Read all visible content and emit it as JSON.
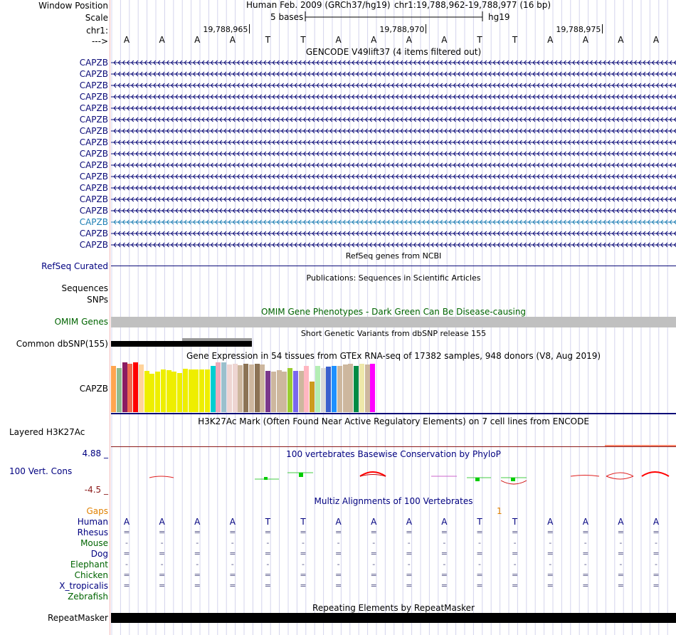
{
  "header": {
    "window_position_label": "Window Position",
    "scale_label": "Scale",
    "chrom_label": "chr1:",
    "strand_label": "--->",
    "assembly": "Human Feb. 2009 (GRCh37/hg19)",
    "position": "chr1:19,788,962-19,788,977 (16 bp)",
    "scale_text": "5 bases",
    "scale_db": "hg19",
    "ticks": [
      "19,788,965",
      "19,788,970",
      "19,788,975"
    ]
  },
  "sequence": [
    "A",
    "A",
    "A",
    "A",
    "T",
    "T",
    "A",
    "A",
    "A",
    "A",
    "T",
    "T",
    "A",
    "A",
    "A",
    "A"
  ],
  "gencode": {
    "title": "GENCODE V49lift37 (4 items filtered out)",
    "items": [
      "CAPZB",
      "CAPZB",
      "CAPZB",
      "CAPZB",
      "CAPZB",
      "CAPZB",
      "CAPZB",
      "CAPZB",
      "CAPZB",
      "CAPZB",
      "CAPZB",
      "CAPZB",
      "CAPZB",
      "CAPZB",
      "CAPZB",
      "CAPZB",
      "CAPZB"
    ],
    "colors": [
      "#0c0c78",
      "#0c0c78",
      "#0c0c78",
      "#0c0c78",
      "#0c0c78",
      "#0c0c78",
      "#0c0c78",
      "#0c0c78",
      "#0c0c78",
      "#0c0c78",
      "#0c0c78",
      "#0c0c78",
      "#0c0c78",
      "#0c0c78",
      "#1e7fb4",
      "#0c0c78",
      "#0c0c78"
    ]
  },
  "refseq": {
    "title": "RefSeq genes from NCBI",
    "label": "RefSeq Curated"
  },
  "publications": {
    "title": "Publications: Sequences in Scientific Articles",
    "label1": "Sequences",
    "label2": "SNPs"
  },
  "omim": {
    "title": "OMIM Gene Phenotypes - Dark Green Can Be Disease-causing",
    "label": "OMIM Genes"
  },
  "dbsnp": {
    "title": "Short Genetic Variants from dbSNP release 155",
    "label": "Common dbSNP(155)"
  },
  "gtex": {
    "title": "Gene Expression in 54 tissues from GTEx RNA-seq of 17382 samples, 948 donors (V8, Aug 2019)",
    "label": "CAPZB",
    "bars": [
      {
        "color": "#FFA54F",
        "value": 65
      },
      {
        "color": "#8FBC8F",
        "value": 62
      },
      {
        "color": "#8B1C62",
        "value": 70
      },
      {
        "color": "#EE6A50",
        "value": 68
      },
      {
        "color": "#FF0000",
        "value": 70
      },
      {
        "color": "#FFD39B",
        "value": 67
      },
      {
        "color": "#EEEE00",
        "value": 58
      },
      {
        "color": "#EEEE00",
        "value": 54
      },
      {
        "color": "#EEEE00",
        "value": 57
      },
      {
        "color": "#EEEE00",
        "value": 60
      },
      {
        "color": "#EEEE00",
        "value": 59
      },
      {
        "color": "#EEEE00",
        "value": 57
      },
      {
        "color": "#EEEE00",
        "value": 55
      },
      {
        "color": "#EEEE00",
        "value": 61
      },
      {
        "color": "#EEEE00",
        "value": 60
      },
      {
        "color": "#EEEE00",
        "value": 60
      },
      {
        "color": "#EEEE00",
        "value": 60
      },
      {
        "color": "#EEEE00",
        "value": 60
      },
      {
        "color": "#00CED1",
        "value": 65
      },
      {
        "color": "#EEA9B8",
        "value": 70
      },
      {
        "color": "#9AC0CD",
        "value": 70
      },
      {
        "color": "#EED5D2",
        "value": 67
      },
      {
        "color": "#EED5D2",
        "value": 68
      },
      {
        "color": "#CDB79E",
        "value": 66
      },
      {
        "color": "#8B7355",
        "value": 68
      },
      {
        "color": "#CDB79E",
        "value": 67
      },
      {
        "color": "#8B7355",
        "value": 68
      },
      {
        "color": "#CDB79E",
        "value": 67
      },
      {
        "color": "#7A378B",
        "value": 58
      },
      {
        "color": "#CDB79E",
        "value": 57
      },
      {
        "color": "#CDB79E",
        "value": 59
      },
      {
        "color": "#CDB79E",
        "value": 57
      },
      {
        "color": "#9ACD32",
        "value": 62
      },
      {
        "color": "#7A67EE",
        "value": 58
      },
      {
        "color": "#CDB79E",
        "value": 58
      },
      {
        "color": "#FFB6C1",
        "value": 65
      },
      {
        "color": "#CD9B1D",
        "value": 43
      },
      {
        "color": "#B4EEB4",
        "value": 65
      },
      {
        "color": "#D9D9D9",
        "value": 62
      },
      {
        "color": "#3A5FCD",
        "value": 64
      },
      {
        "color": "#1E90FF",
        "value": 65
      },
      {
        "color": "#CDB79E",
        "value": 65
      },
      {
        "color": "#CDB79E",
        "value": 67
      },
      {
        "color": "#CDB79E",
        "value": 68
      },
      {
        "color": "#008B45",
        "value": 65
      },
      {
        "color": "#EEE8AA",
        "value": 68
      },
      {
        "color": "#CDB79E",
        "value": 67
      },
      {
        "color": "#FF00FF",
        "value": 68
      }
    ]
  },
  "h3k27ac": {
    "title": "H3K27Ac Mark (Often Found Near Active Regulatory Elements) on 7 cell lines from ENCODE",
    "label": "Layered H3K27Ac"
  },
  "cons": {
    "title": "100 vertebrates Basewise Conservation by PhyloP",
    "label": "100 Vert. Cons",
    "max_label": "4.88 _",
    "min_label": "-4.5 _"
  },
  "multiz": {
    "title": "Multiz Alignments of 100 Vertebrates",
    "gaps_label": "Gaps",
    "gap_count": "1",
    "species": [
      {
        "name": "Human",
        "color": "#000080",
        "row": [
          "A",
          "A",
          "A",
          "A",
          "T",
          "T",
          "A",
          "A",
          "A",
          "A",
          "T",
          "T",
          "A",
          "A",
          "A",
          "A"
        ]
      },
      {
        "name": "Rhesus",
        "color": "#000080",
        "row": [
          "=",
          "=",
          "=",
          "=",
          "=",
          "=",
          "=",
          "=",
          "=",
          "=",
          "=",
          "=",
          "=",
          "=",
          "=",
          "="
        ]
      },
      {
        "name": "Mouse",
        "color": "#006400",
        "row": [
          "-",
          "-",
          "-",
          "-",
          "-",
          "-",
          "-",
          "-",
          "-",
          "-",
          "-",
          "-",
          "-",
          "-",
          "-",
          "-"
        ]
      },
      {
        "name": "Dog",
        "color": "#000080",
        "row": [
          "=",
          "=",
          "=",
          "=",
          "=",
          "=",
          "=",
          "=",
          "=",
          "=",
          "=",
          "=",
          "=",
          "=",
          "=",
          "="
        ]
      },
      {
        "name": "Elephant",
        "color": "#006400",
        "row": [
          "-",
          "-",
          "-",
          "-",
          "-",
          "-",
          "-",
          "-",
          "-",
          "-",
          "-",
          "-",
          "-",
          "-",
          "-",
          "-"
        ]
      },
      {
        "name": "Chicken",
        "color": "#006400",
        "row": [
          "=",
          "=",
          "=",
          "=",
          "=",
          "=",
          "=",
          "=",
          "=",
          "=",
          "=",
          "=",
          "=",
          "=",
          "=",
          "="
        ]
      },
      {
        "name": "X_tropicalis",
        "color": "#000080",
        "row": [
          "=",
          "=",
          "=",
          "=",
          "=",
          "=",
          "=",
          "=",
          "=",
          "=",
          "=",
          "=",
          "=",
          "=",
          "=",
          "="
        ]
      },
      {
        "name": "Zebrafish",
        "color": "#006400",
        "row": [
          "",
          "",
          "",
          "",
          "",
          "",
          "",
          "",
          "",
          "",
          "",
          "",
          "",
          "",
          "",
          ""
        ]
      }
    ]
  },
  "repeatmasker": {
    "title": "Repeating Elements by RepeatMasker",
    "label": "RepeatMasker"
  }
}
